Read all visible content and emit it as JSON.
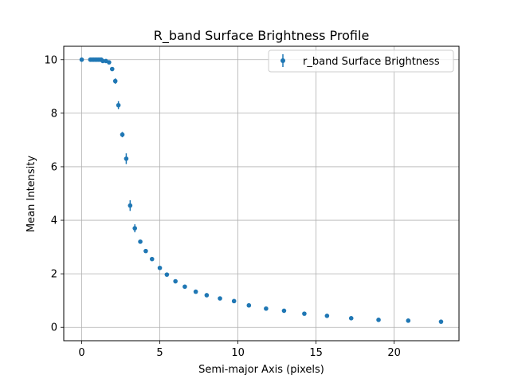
{
  "chart_data": {
    "type": "scatter",
    "title": "R_band Surface Brightness Profile",
    "xlabel": "Semi-major Axis (pixels)",
    "ylabel": "Mean Intensity",
    "xlim": [
      -1.15,
      24.15
    ],
    "ylim": [
      -0.5,
      10.5
    ],
    "x_ticks": [
      0,
      5,
      10,
      15,
      20
    ],
    "y_ticks": [
      0,
      2,
      4,
      6,
      8,
      10
    ],
    "grid": true,
    "legend_position": "top-right",
    "color": "#1f77b4",
    "series": [
      {
        "name": "r_band Surface Brightness",
        "x": [
          0,
          0.55,
          0.65,
          0.75,
          0.85,
          0.95,
          1.05,
          1.15,
          1.25,
          1.35,
          1.55,
          1.75,
          1.95,
          2.15,
          2.35,
          2.6,
          2.85,
          3.1,
          3.4,
          3.75,
          4.1,
          4.5,
          5.0,
          5.45,
          6.0,
          6.6,
          7.3,
          8.0,
          8.85,
          9.75,
          10.7,
          11.8,
          12.95,
          14.25,
          15.7,
          17.25,
          19.0,
          20.9,
          23.0
        ],
        "y": [
          10.0,
          10.0,
          10.0,
          10.0,
          10.0,
          10.0,
          10.0,
          10.0,
          10.0,
          9.95,
          9.95,
          9.9,
          9.65,
          9.2,
          8.3,
          7.2,
          6.3,
          4.55,
          3.7,
          3.2,
          2.85,
          2.55,
          2.22,
          1.97,
          1.72,
          1.52,
          1.33,
          1.2,
          1.08,
          0.98,
          0.82,
          0.7,
          0.62,
          0.51,
          0.43,
          0.34,
          0.28,
          0.25,
          0.21
        ],
        "yerr": [
          0,
          0,
          0,
          0,
          0,
          0,
          0,
          0,
          0.04,
          0.04,
          0.04,
          0.05,
          0.07,
          0.1,
          0.15,
          0.1,
          0.2,
          0.2,
          0.15,
          0.06,
          0.05,
          0.05,
          0.04,
          0.03,
          0.03,
          0.03,
          0.02,
          0.02,
          0.02,
          0.02,
          0.02,
          0.02,
          0.02,
          0.01,
          0.01,
          0.01,
          0.01,
          0.01,
          0.01
        ]
      }
    ]
  }
}
